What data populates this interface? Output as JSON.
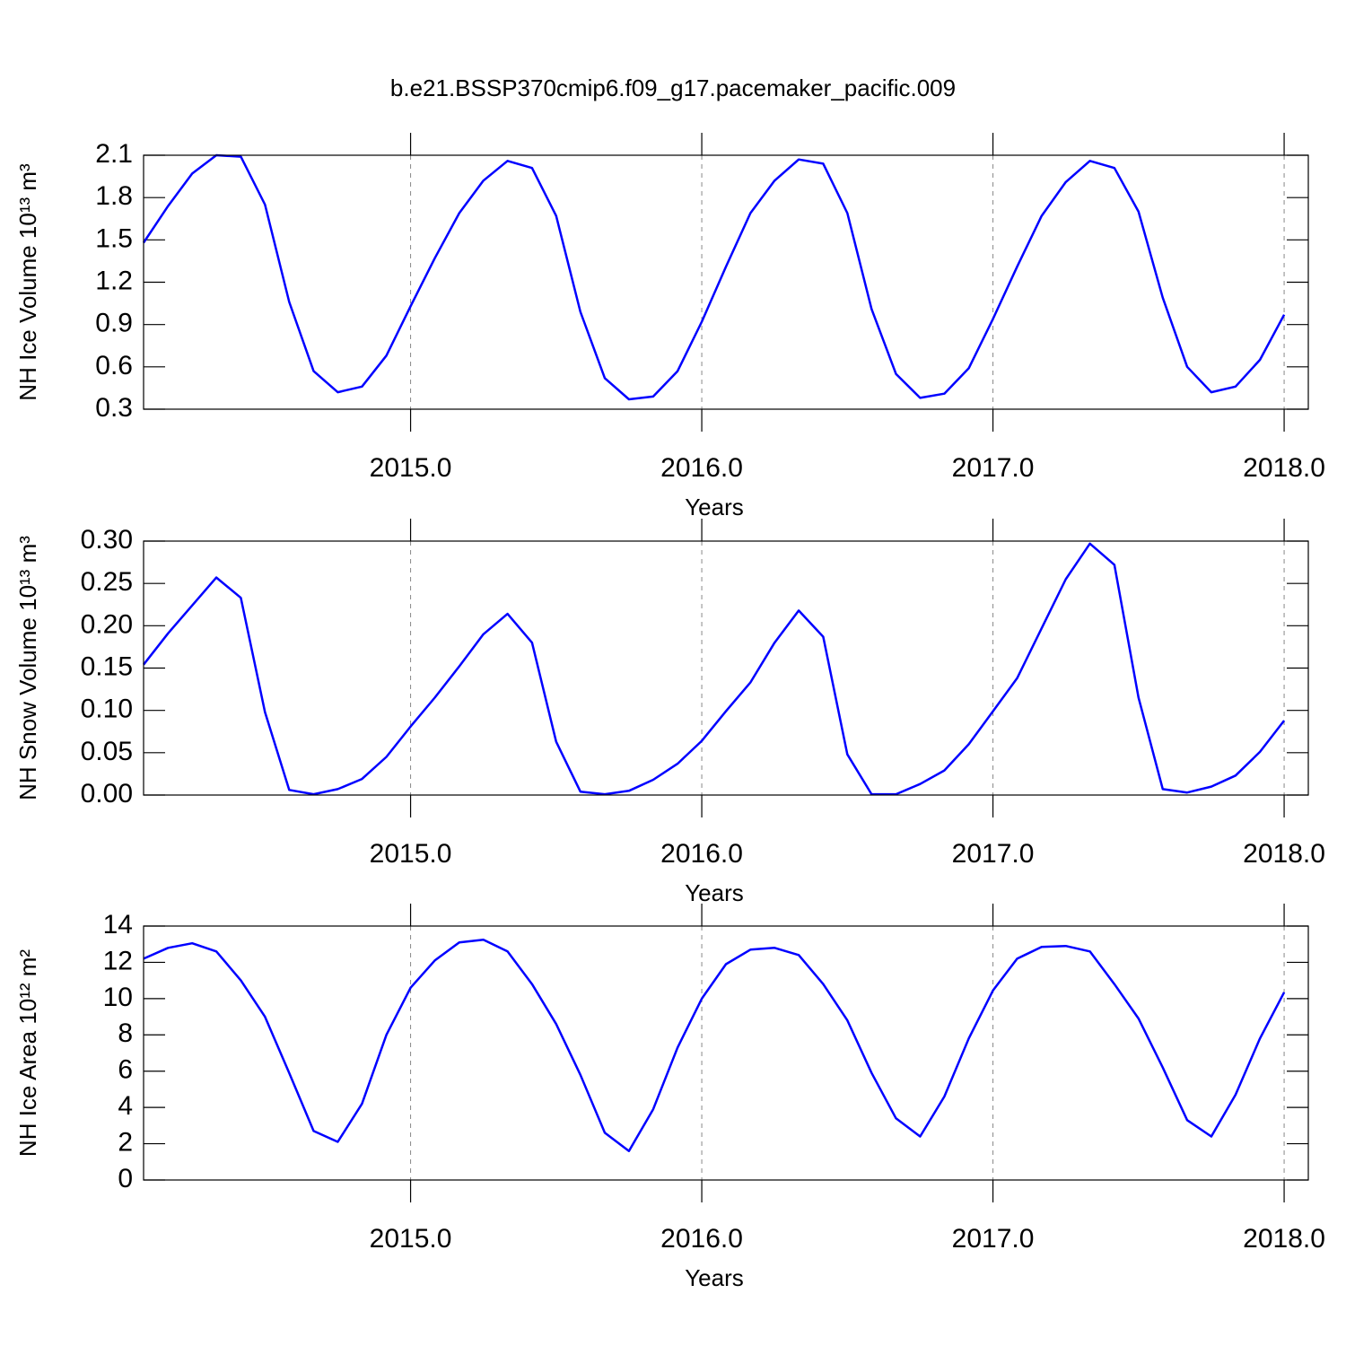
{
  "title": "b.e21.BSSP370cmip6.f09_g17.pacemaker_pacific.009",
  "chart_data": [
    {
      "type": "line",
      "ylabel": "NH Ice Volume 10¹³ m³",
      "xlabel": "Years",
      "color": "#0000ff",
      "grid": true,
      "xlim": [
        2014.083,
        2018.083
      ],
      "ylim": [
        0.3,
        2.1
      ],
      "xticks": [
        {
          "value": 2015,
          "label": "2015.0"
        },
        {
          "value": 2016,
          "label": "2016.0"
        },
        {
          "value": 2017,
          "label": "2017.0"
        },
        {
          "value": 2018,
          "label": "2018.0"
        }
      ],
      "yticks": [
        0.3,
        0.6,
        0.9,
        1.2,
        1.5,
        1.8,
        2.1
      ],
      "x": [
        2014.083,
        2014.167,
        2014.25,
        2014.333,
        2014.417,
        2014.5,
        2014.583,
        2014.667,
        2014.75,
        2014.833,
        2014.917,
        2015,
        2015.083,
        2015.167,
        2015.25,
        2015.333,
        2015.417,
        2015.5,
        2015.583,
        2015.667,
        2015.75,
        2015.833,
        2015.917,
        2016,
        2016.083,
        2016.167,
        2016.25,
        2016.333,
        2016.417,
        2016.5,
        2016.583,
        2016.667,
        2016.75,
        2016.833,
        2016.917,
        2017,
        2017.083,
        2017.167,
        2017.25,
        2017.333,
        2017.417,
        2017.5,
        2017.583,
        2017.667,
        2017.75,
        2017.833,
        2017.917,
        2018
      ],
      "values": [
        1.48,
        1.74,
        1.97,
        2.1,
        2.09,
        1.75,
        1.06,
        0.57,
        0.42,
        0.46,
        0.68,
        1.03,
        1.37,
        1.69,
        1.92,
        2.06,
        2.01,
        1.67,
        0.99,
        0.52,
        0.37,
        0.39,
        0.57,
        0.92,
        1.31,
        1.69,
        1.92,
        2.07,
        2.04,
        1.69,
        1.01,
        0.55,
        0.38,
        0.41,
        0.59,
        0.94,
        1.31,
        1.67,
        1.91,
        2.06,
        2.01,
        1.7,
        1.09,
        0.6,
        0.42,
        0.46,
        0.65,
        0.97
      ]
    },
    {
      "type": "line",
      "ylabel": "NH Snow Volume 10¹³ m³",
      "xlabel": "Years",
      "color": "#0000ff",
      "grid": true,
      "xlim": [
        2014.083,
        2018.083
      ],
      "ylim": [
        0,
        0.3
      ],
      "xticks": [
        {
          "value": 2015,
          "label": "2015.0"
        },
        {
          "value": 2016,
          "label": "2016.0"
        },
        {
          "value": 2017,
          "label": "2017.0"
        },
        {
          "value": 2018,
          "label": "2018.0"
        }
      ],
      "yticks": [
        {
          "value": 0,
          "label": "0.00"
        },
        {
          "value": 0.05,
          "label": "0.05"
        },
        {
          "value": 0.1,
          "label": "0.10"
        },
        {
          "value": 0.15,
          "label": "0.15"
        },
        {
          "value": 0.2,
          "label": "0.20"
        },
        {
          "value": 0.25,
          "label": "0.25"
        },
        {
          "value": 0.3,
          "label": "0.30"
        }
      ],
      "x": [
        2014.083,
        2014.167,
        2014.25,
        2014.333,
        2014.417,
        2014.5,
        2014.583,
        2014.667,
        2014.75,
        2014.833,
        2014.917,
        2015,
        2015.083,
        2015.167,
        2015.25,
        2015.333,
        2015.417,
        2015.5,
        2015.583,
        2015.667,
        2015.75,
        2015.833,
        2015.917,
        2016,
        2016.083,
        2016.167,
        2016.25,
        2016.333,
        2016.417,
        2016.5,
        2016.583,
        2016.667,
        2016.75,
        2016.833,
        2016.917,
        2017,
        2017.083,
        2017.167,
        2017.25,
        2017.333,
        2017.417,
        2017.5,
        2017.583,
        2017.667,
        2017.75,
        2017.833,
        2017.917,
        2018
      ],
      "values": [
        0.154,
        0.191,
        0.224,
        0.257,
        0.233,
        0.098,
        0.006,
        0.001,
        0.007,
        0.019,
        0.045,
        0.081,
        0.115,
        0.152,
        0.19,
        0.214,
        0.18,
        0.063,
        0.004,
        0.001,
        0.005,
        0.018,
        0.037,
        0.064,
        0.099,
        0.133,
        0.18,
        0.218,
        0.187,
        0.048,
        0.001,
        0.001,
        0.013,
        0.029,
        0.06,
        0.099,
        0.138,
        0.197,
        0.255,
        0.297,
        0.272,
        0.115,
        0.007,
        0.003,
        0.01,
        0.023,
        0.051,
        0.088
      ]
    },
    {
      "type": "line",
      "ylabel": "NH Ice Area 10¹² m²",
      "xlabel": "Years",
      "color": "#0000ff",
      "grid": true,
      "xlim": [
        2014.083,
        2018.083
      ],
      "ylim": [
        0,
        14
      ],
      "xticks": [
        {
          "value": 2015,
          "label": "2015.0"
        },
        {
          "value": 2016,
          "label": "2016.0"
        },
        {
          "value": 2017,
          "label": "2017.0"
        },
        {
          "value": 2018,
          "label": "2018.0"
        }
      ],
      "yticks": [
        0,
        2,
        4,
        6,
        8,
        10,
        12,
        14
      ],
      "x": [
        2014.083,
        2014.167,
        2014.25,
        2014.333,
        2014.417,
        2014.5,
        2014.583,
        2014.667,
        2014.75,
        2014.833,
        2014.917,
        2015,
        2015.083,
        2015.167,
        2015.25,
        2015.333,
        2015.417,
        2015.5,
        2015.583,
        2015.667,
        2015.75,
        2015.833,
        2015.917,
        2016,
        2016.083,
        2016.167,
        2016.25,
        2016.333,
        2016.417,
        2016.5,
        2016.583,
        2016.667,
        2016.75,
        2016.833,
        2016.917,
        2017,
        2017.083,
        2017.167,
        2017.25,
        2017.333,
        2017.417,
        2017.5,
        2017.583,
        2017.667,
        2017.75,
        2017.833,
        2017.917,
        2018
      ],
      "values": [
        12.2,
        12.8,
        13.05,
        12.6,
        11.0,
        9.0,
        5.9,
        2.7,
        2.1,
        4.2,
        8.0,
        10.6,
        12.1,
        13.1,
        13.25,
        12.6,
        10.8,
        8.6,
        5.8,
        2.6,
        1.6,
        3.9,
        7.3,
        10.0,
        11.9,
        12.7,
        12.8,
        12.4,
        10.8,
        8.8,
        5.9,
        3.4,
        2.4,
        4.6,
        7.8,
        10.45,
        12.2,
        12.85,
        12.9,
        12.6,
        10.8,
        8.9,
        6.2,
        3.3,
        2.4,
        4.7,
        7.8,
        10.35
      ]
    }
  ]
}
